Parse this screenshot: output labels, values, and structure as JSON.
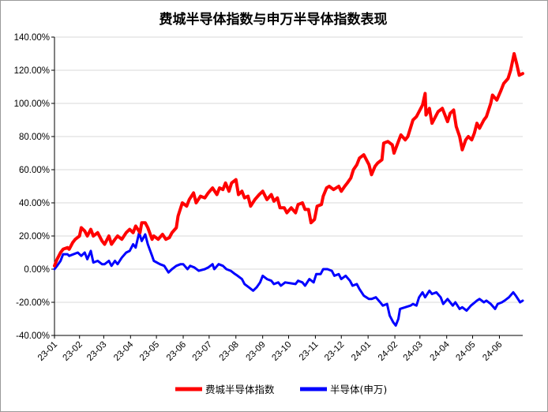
{
  "chart_data": {
    "type": "line",
    "title": "费城半导体指数与申万半导体指数表现",
    "xlabel": "",
    "ylabel": "",
    "x_start": "2023-01-03",
    "x_end": "2024-06-28",
    "ylim": [
      -0.4,
      1.4
    ],
    "yticks": [
      -0.4,
      -0.2,
      0.0,
      0.2,
      0.4,
      0.6,
      0.8,
      1.0,
      1.2,
      1.4
    ],
    "ytick_labels": [
      "-40.00%",
      "-20.00%",
      "0.00%",
      "20.00%",
      "40.00%",
      "60.00%",
      "80.00%",
      "100.00%",
      "120.00%",
      "140.00%"
    ],
    "xtick_labels": [
      "23-01",
      "23-02",
      "23-03",
      "23-04",
      "23-05",
      "23-06",
      "23-07",
      "23-08",
      "23-09",
      "23-10",
      "23-11",
      "23-12",
      "24-01",
      "24-02",
      "24-03",
      "24-04",
      "24-05",
      "24-06"
    ],
    "grid": "horizontal",
    "legend_position": "bottom",
    "series": [
      {
        "name": "费城半导体指数",
        "color": "#ff0000",
        "points": [
          [
            "2023-01-03",
            0.02
          ],
          [
            "2023-01-06",
            0.06
          ],
          [
            "2023-01-10",
            0.1
          ],
          [
            "2023-01-13",
            0.12
          ],
          [
            "2023-01-18",
            0.13
          ],
          [
            "2023-01-20",
            0.12
          ],
          [
            "2023-01-24",
            0.16
          ],
          [
            "2023-01-27",
            0.18
          ],
          [
            "2023-02-01",
            0.2
          ],
          [
            "2023-02-03",
            0.25
          ],
          [
            "2023-02-07",
            0.23
          ],
          [
            "2023-02-10",
            0.2
          ],
          [
            "2023-02-14",
            0.24
          ],
          [
            "2023-02-17",
            0.2
          ],
          [
            "2023-02-22",
            0.22
          ],
          [
            "2023-02-27",
            0.17
          ],
          [
            "2023-03-02",
            0.15
          ],
          [
            "2023-03-07",
            0.2
          ],
          [
            "2023-03-10",
            0.15
          ],
          [
            "2023-03-14",
            0.18
          ],
          [
            "2023-03-17",
            0.2
          ],
          [
            "2023-03-22",
            0.18
          ],
          [
            "2023-03-27",
            0.22
          ],
          [
            "2023-03-31",
            0.24
          ],
          [
            "2023-04-04",
            0.22
          ],
          [
            "2023-04-07",
            0.26
          ],
          [
            "2023-04-12",
            0.22
          ],
          [
            "2023-04-14",
            0.28
          ],
          [
            "2023-04-18",
            0.28
          ],
          [
            "2023-04-21",
            0.25
          ],
          [
            "2023-04-26",
            0.18
          ],
          [
            "2023-04-28",
            0.2
          ],
          [
            "2023-05-03",
            0.18
          ],
          [
            "2023-05-08",
            0.21
          ],
          [
            "2023-05-12",
            0.18
          ],
          [
            "2023-05-16",
            0.19
          ],
          [
            "2023-05-19",
            0.22
          ],
          [
            "2023-05-24",
            0.25
          ],
          [
            "2023-05-26",
            0.32
          ],
          [
            "2023-05-31",
            0.4
          ],
          [
            "2023-06-05",
            0.38
          ],
          [
            "2023-06-08",
            0.42
          ],
          [
            "2023-06-13",
            0.46
          ],
          [
            "2023-06-16",
            0.4
          ],
          [
            "2023-06-21",
            0.44
          ],
          [
            "2023-06-26",
            0.43
          ],
          [
            "2023-06-30",
            0.46
          ],
          [
            "2023-07-05",
            0.49
          ],
          [
            "2023-07-10",
            0.45
          ],
          [
            "2023-07-13",
            0.49
          ],
          [
            "2023-07-17",
            0.48
          ],
          [
            "2023-07-20",
            0.52
          ],
          [
            "2023-07-24",
            0.47
          ],
          [
            "2023-07-27",
            0.52
          ],
          [
            "2023-08-01",
            0.54
          ],
          [
            "2023-08-04",
            0.45
          ],
          [
            "2023-08-08",
            0.47
          ],
          [
            "2023-08-11",
            0.43
          ],
          [
            "2023-08-15",
            0.44
          ],
          [
            "2023-08-18",
            0.38
          ],
          [
            "2023-08-23",
            0.42
          ],
          [
            "2023-08-28",
            0.45
          ],
          [
            "2023-09-01",
            0.47
          ],
          [
            "2023-09-06",
            0.42
          ],
          [
            "2023-09-11",
            0.45
          ],
          [
            "2023-09-14",
            0.41
          ],
          [
            "2023-09-18",
            0.43
          ],
          [
            "2023-09-21",
            0.37
          ],
          [
            "2023-09-26",
            0.37
          ],
          [
            "2023-09-29",
            0.34
          ],
          [
            "2023-10-04",
            0.37
          ],
          [
            "2023-10-09",
            0.34
          ],
          [
            "2023-10-12",
            0.39
          ],
          [
            "2023-10-17",
            0.4
          ],
          [
            "2023-10-20",
            0.36
          ],
          [
            "2023-10-24",
            0.36
          ],
          [
            "2023-10-27",
            0.28
          ],
          [
            "2023-10-31",
            0.3
          ],
          [
            "2023-11-03",
            0.38
          ],
          [
            "2023-11-08",
            0.39
          ],
          [
            "2023-11-10",
            0.44
          ],
          [
            "2023-11-14",
            0.49
          ],
          [
            "2023-11-17",
            0.5
          ],
          [
            "2023-11-22",
            0.48
          ],
          [
            "2023-11-28",
            0.5
          ],
          [
            "2023-12-01",
            0.47
          ],
          [
            "2023-12-05",
            0.5
          ],
          [
            "2023-12-08",
            0.52
          ],
          [
            "2023-12-12",
            0.55
          ],
          [
            "2023-12-15",
            0.6
          ],
          [
            "2023-12-19",
            0.63
          ],
          [
            "2023-12-22",
            0.67
          ],
          [
            "2023-12-27",
            0.69
          ],
          [
            "2024-01-02",
            0.63
          ],
          [
            "2024-01-05",
            0.57
          ],
          [
            "2024-01-09",
            0.62
          ],
          [
            "2024-01-12",
            0.64
          ],
          [
            "2024-01-17",
            0.66
          ],
          [
            "2024-01-19",
            0.76
          ],
          [
            "2024-01-24",
            0.77
          ],
          [
            "2024-01-29",
            0.75
          ],
          [
            "2024-01-31",
            0.7
          ],
          [
            "2024-02-05",
            0.77
          ],
          [
            "2024-02-08",
            0.81
          ],
          [
            "2024-02-13",
            0.78
          ],
          [
            "2024-02-16",
            0.8
          ],
          [
            "2024-02-22",
            0.9
          ],
          [
            "2024-02-26",
            0.92
          ],
          [
            "2024-02-29",
            0.95
          ],
          [
            "2024-03-04",
            0.99
          ],
          [
            "2024-03-07",
            1.06
          ],
          [
            "2024-03-08",
            0.93
          ],
          [
            "2024-03-12",
            0.97
          ],
          [
            "2024-03-15",
            0.88
          ],
          [
            "2024-03-19",
            0.92
          ],
          [
            "2024-03-22",
            0.95
          ],
          [
            "2024-03-27",
            0.97
          ],
          [
            "2024-04-02",
            0.89
          ],
          [
            "2024-04-05",
            0.94
          ],
          [
            "2024-04-09",
            0.96
          ],
          [
            "2024-04-12",
            0.86
          ],
          [
            "2024-04-16",
            0.8
          ],
          [
            "2024-04-19",
            0.72
          ],
          [
            "2024-04-23",
            0.78
          ],
          [
            "2024-04-26",
            0.8
          ],
          [
            "2024-04-30",
            0.78
          ],
          [
            "2024-05-03",
            0.82
          ],
          [
            "2024-05-06",
            0.88
          ],
          [
            "2024-05-09",
            0.85
          ],
          [
            "2024-05-14",
            0.9
          ],
          [
            "2024-05-17",
            0.92
          ],
          [
            "2024-05-22",
            1.0
          ],
          [
            "2024-05-24",
            1.05
          ],
          [
            "2024-05-29",
            1.02
          ],
          [
            "2024-06-03",
            1.08
          ],
          [
            "2024-06-06",
            1.12
          ],
          [
            "2024-06-11",
            1.15
          ],
          [
            "2024-06-14",
            1.2
          ],
          [
            "2024-06-18",
            1.3
          ],
          [
            "2024-06-21",
            1.24
          ],
          [
            "2024-06-24",
            1.17
          ],
          [
            "2024-06-28",
            1.18
          ]
        ]
      },
      {
        "name": "半导体(申万)",
        "color": "#0000ff",
        "points": [
          [
            "2023-01-03",
            0.0
          ],
          [
            "2023-01-06",
            0.02
          ],
          [
            "2023-01-10",
            0.05
          ],
          [
            "2023-01-13",
            0.09
          ],
          [
            "2023-01-18",
            0.09
          ],
          [
            "2023-01-20",
            0.08
          ],
          [
            "2023-01-30",
            0.1
          ],
          [
            "2023-02-03",
            0.08
          ],
          [
            "2023-02-07",
            0.1
          ],
          [
            "2023-02-10",
            0.06
          ],
          [
            "2023-02-14",
            0.11
          ],
          [
            "2023-02-17",
            0.04
          ],
          [
            "2023-02-22",
            0.05
          ],
          [
            "2023-02-27",
            0.03
          ],
          [
            "2023-03-02",
            0.03
          ],
          [
            "2023-03-07",
            0.05
          ],
          [
            "2023-03-10",
            0.02
          ],
          [
            "2023-03-14",
            0.05
          ],
          [
            "2023-03-17",
            0.03
          ],
          [
            "2023-03-22",
            0.07
          ],
          [
            "2023-03-27",
            0.1
          ],
          [
            "2023-03-31",
            0.11
          ],
          [
            "2023-04-04",
            0.15
          ],
          [
            "2023-04-07",
            0.13
          ],
          [
            "2023-04-11",
            0.22
          ],
          [
            "2023-04-14",
            0.17
          ],
          [
            "2023-04-18",
            0.21
          ],
          [
            "2023-04-21",
            0.15
          ],
          [
            "2023-04-26",
            0.08
          ],
          [
            "2023-04-28",
            0.05
          ],
          [
            "2023-05-05",
            0.03
          ],
          [
            "2023-05-10",
            0.02
          ],
          [
            "2023-05-15",
            -0.02
          ],
          [
            "2023-05-19",
            0.0
          ],
          [
            "2023-05-24",
            0.02
          ],
          [
            "2023-05-29",
            0.03
          ],
          [
            "2023-06-01",
            0.03
          ],
          [
            "2023-06-06",
            0.0
          ],
          [
            "2023-06-09",
            0.02
          ],
          [
            "2023-06-14",
            0.01
          ],
          [
            "2023-06-19",
            -0.01
          ],
          [
            "2023-06-26",
            0.0
          ],
          [
            "2023-06-30",
            0.01
          ],
          [
            "2023-07-05",
            0.03
          ],
          [
            "2023-07-07",
            0.0
          ],
          [
            "2023-07-12",
            0.03
          ],
          [
            "2023-07-17",
            0.02
          ],
          [
            "2023-07-21",
            0.0
          ],
          [
            "2023-07-26",
            -0.01
          ],
          [
            "2023-07-31",
            -0.03
          ],
          [
            "2023-08-03",
            -0.04
          ],
          [
            "2023-08-08",
            -0.06
          ],
          [
            "2023-08-11",
            -0.09
          ],
          [
            "2023-08-16",
            -0.11
          ],
          [
            "2023-08-21",
            -0.13
          ],
          [
            "2023-08-25",
            -0.11
          ],
          [
            "2023-08-29",
            -0.08
          ],
          [
            "2023-09-01",
            -0.04
          ],
          [
            "2023-09-06",
            -0.06
          ],
          [
            "2023-09-11",
            -0.07
          ],
          [
            "2023-09-14",
            -0.09
          ],
          [
            "2023-09-19",
            -0.08
          ],
          [
            "2023-09-22",
            -0.1
          ],
          [
            "2023-09-27",
            -0.08
          ],
          [
            "2023-10-09",
            -0.09
          ],
          [
            "2023-10-12",
            -0.07
          ],
          [
            "2023-10-17",
            -0.08
          ],
          [
            "2023-10-20",
            -0.1
          ],
          [
            "2023-10-25",
            -0.06
          ],
          [
            "2023-10-30",
            -0.08
          ],
          [
            "2023-11-02",
            -0.03
          ],
          [
            "2023-11-07",
            -0.03
          ],
          [
            "2023-11-10",
            0.0
          ],
          [
            "2023-11-15",
            0.0
          ],
          [
            "2023-11-20",
            -0.01
          ],
          [
            "2023-11-23",
            -0.04
          ],
          [
            "2023-11-28",
            -0.03
          ],
          [
            "2023-12-01",
            -0.06
          ],
          [
            "2023-12-06",
            -0.04
          ],
          [
            "2023-12-11",
            -0.07
          ],
          [
            "2023-12-14",
            -0.1
          ],
          [
            "2023-12-19",
            -0.09
          ],
          [
            "2023-12-22",
            -0.12
          ],
          [
            "2023-12-27",
            -0.16
          ],
          [
            "2024-01-02",
            -0.18
          ],
          [
            "2024-01-05",
            -0.18
          ],
          [
            "2024-01-10",
            -0.17
          ],
          [
            "2024-01-15",
            -0.2
          ],
          [
            "2024-01-18",
            -0.22
          ],
          [
            "2024-01-23",
            -0.21
          ],
          [
            "2024-01-26",
            -0.28
          ],
          [
            "2024-01-30",
            -0.32
          ],
          [
            "2024-02-02",
            -0.34
          ],
          [
            "2024-02-05",
            -0.3
          ],
          [
            "2024-02-07",
            -0.24
          ],
          [
            "2024-02-19",
            -0.22
          ],
          [
            "2024-02-22",
            -0.21
          ],
          [
            "2024-02-26",
            -0.22
          ],
          [
            "2024-02-29",
            -0.17
          ],
          [
            "2024-03-04",
            -0.14
          ],
          [
            "2024-03-07",
            -0.17
          ],
          [
            "2024-03-12",
            -0.13
          ],
          [
            "2024-03-15",
            -0.15
          ],
          [
            "2024-03-20",
            -0.14
          ],
          [
            "2024-03-25",
            -0.17
          ],
          [
            "2024-03-28",
            -0.21
          ],
          [
            "2024-04-02",
            -0.18
          ],
          [
            "2024-04-08",
            -0.22
          ],
          [
            "2024-04-11",
            -0.2
          ],
          [
            "2024-04-16",
            -0.24
          ],
          [
            "2024-04-19",
            -0.23
          ],
          [
            "2024-04-24",
            -0.25
          ],
          [
            "2024-04-29",
            -0.22
          ],
          [
            "2024-05-06",
            -0.19
          ],
          [
            "2024-05-09",
            -0.18
          ],
          [
            "2024-05-14",
            -0.2
          ],
          [
            "2024-05-17",
            -0.19
          ],
          [
            "2024-05-22",
            -0.21
          ],
          [
            "2024-05-27",
            -0.24
          ],
          [
            "2024-05-30",
            -0.21
          ],
          [
            "2024-06-04",
            -0.2
          ],
          [
            "2024-06-07",
            -0.19
          ],
          [
            "2024-06-12",
            -0.17
          ],
          [
            "2024-06-17",
            -0.14
          ],
          [
            "2024-06-20",
            -0.16
          ],
          [
            "2024-06-25",
            -0.2
          ],
          [
            "2024-06-28",
            -0.19
          ]
        ]
      }
    ]
  }
}
